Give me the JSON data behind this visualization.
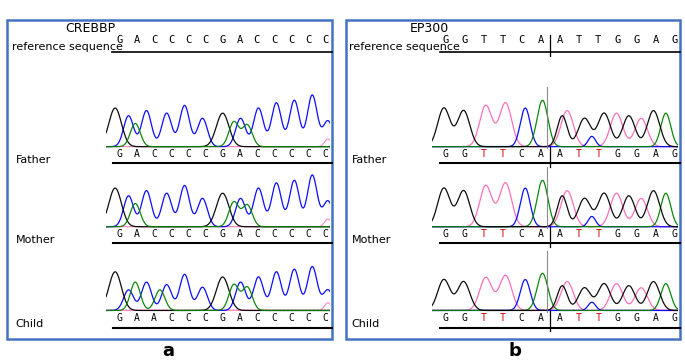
{
  "panel_a": {
    "gene": "CREBBP",
    "ref_seq": "GACCCCGACCCCC",
    "samples": [
      "Father",
      "Mother",
      "Child"
    ],
    "sample_seqs": [
      "GACCCCGACCCCC",
      "GACCCCGACCCCC",
      "GAACCCGACCCCC"
    ],
    "seq_colors_father": [
      "k",
      "k",
      "k",
      "k",
      "k",
      "k",
      "k",
      "k",
      "k",
      "k",
      "k",
      "k",
      "k"
    ],
    "seq_colors_mother": [
      "k",
      "k",
      "k",
      "k",
      "k",
      "k",
      "k",
      "k",
      "k",
      "k",
      "k",
      "k",
      "k"
    ],
    "seq_colors_child": [
      "k",
      "k",
      "k",
      "k",
      "k",
      "k",
      "k",
      "k",
      "k",
      "k",
      "k",
      "k",
      "k"
    ]
  },
  "panel_b": {
    "gene": "EP300",
    "ref_seq": "GGTTCAATTGGAG",
    "ref_divider": 6,
    "samples": [
      "Father",
      "Mother",
      "Child"
    ],
    "sample_seqs": [
      "GGTTCAATTGGAG",
      "GGTTCAATTGGAG",
      "GGTTCAATTGGAG"
    ],
    "seq_colors_father": [
      "k",
      "k",
      "#cc0000",
      "#cc0000",
      "k",
      "k",
      "k",
      "#cc0000",
      "#cc0000",
      "k",
      "k",
      "k",
      "k"
    ],
    "seq_colors_mother": [
      "k",
      "k",
      "#cc0000",
      "#cc0000",
      "k",
      "k",
      "k",
      "#cc0000",
      "#cc0000",
      "k",
      "k",
      "k",
      "k"
    ],
    "seq_colors_child": [
      "k",
      "k",
      "#cc0000",
      "#cc0000",
      "k",
      "k",
      "k",
      "#cc0000",
      "#cc0000",
      "k",
      "k",
      "k",
      "k"
    ]
  },
  "bg_color": "#ffffff",
  "border_color": "#4472c4",
  "ref_label": "reference sequence",
  "fig_label_a": "a",
  "fig_label_b": "b"
}
